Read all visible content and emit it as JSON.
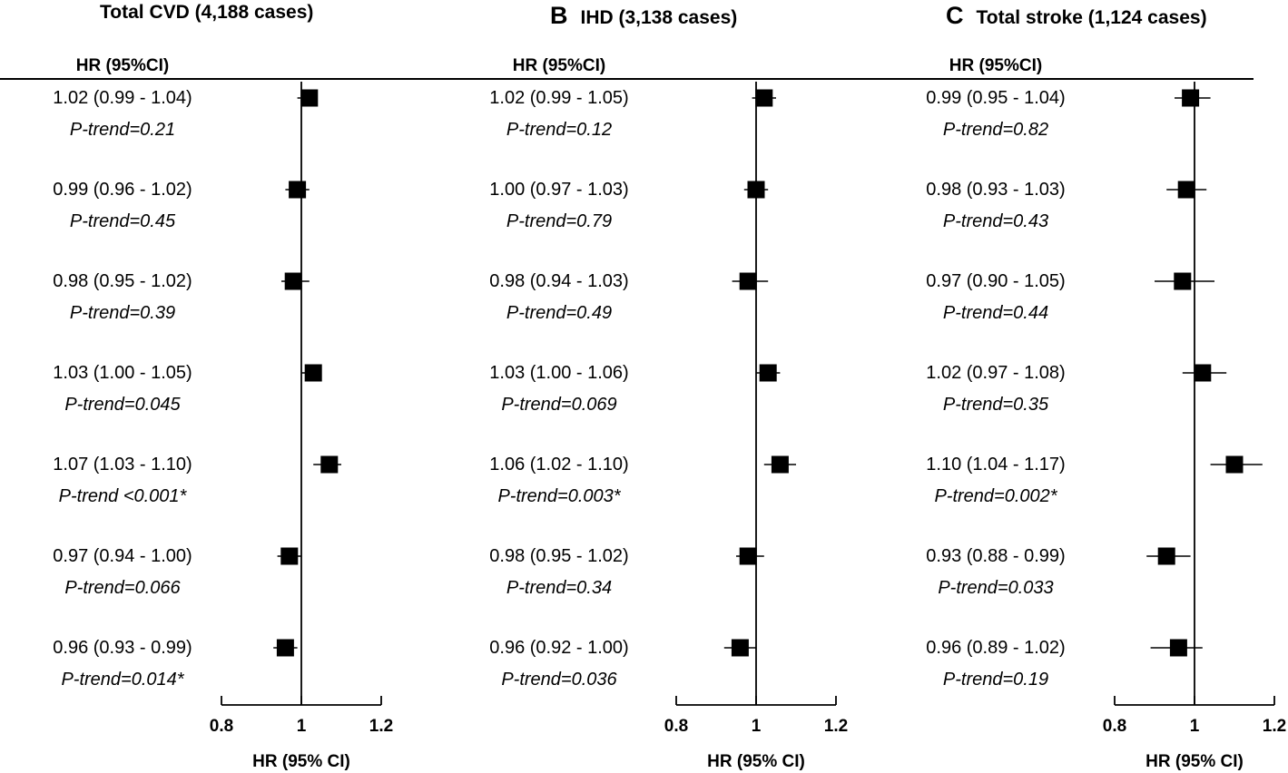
{
  "chart_data": [
    {
      "type": "forest",
      "panel_letter": "",
      "title": "Total CVD (4,188 cases)",
      "column_header": "HR (95%CI)",
      "xlabel": "HR (95% CI)",
      "xlim": [
        0.8,
        1.2
      ],
      "xticks": [
        "0.8",
        "1",
        "1.2"
      ],
      "reference_line": 1,
      "rows": [
        {
          "label": "1.02 (0.99 - 1.04)",
          "hr": 1.02,
          "lo": 0.99,
          "hi": 1.04,
          "p": "P-trend=0.21"
        },
        {
          "label": "0.99 (0.96 - 1.02)",
          "hr": 0.99,
          "lo": 0.96,
          "hi": 1.02,
          "p": "P-trend=0.45"
        },
        {
          "label": "0.98 (0.95 - 1.02)",
          "hr": 0.98,
          "lo": 0.95,
          "hi": 1.02,
          "p": "P-trend=0.39"
        },
        {
          "label": "1.03 (1.00 - 1.05)",
          "hr": 1.03,
          "lo": 1.0,
          "hi": 1.05,
          "p": "P-trend=0.045"
        },
        {
          "label": "1.07 (1.03 - 1.10)",
          "hr": 1.07,
          "lo": 1.03,
          "hi": 1.1,
          "p": "P-trend <0.001*"
        },
        {
          "label": "0.97 (0.94 - 1.00)",
          "hr": 0.97,
          "lo": 0.94,
          "hi": 1.0,
          "p": "P-trend=0.066"
        },
        {
          "label": "0.96 (0.93 - 0.99)",
          "hr": 0.96,
          "lo": 0.93,
          "hi": 0.99,
          "p": "P-trend=0.014*"
        }
      ]
    },
    {
      "type": "forest",
      "panel_letter": "B",
      "title": "IHD (3,138 cases)",
      "column_header": "HR (95%CI)",
      "xlabel": "HR (95% CI)",
      "xlim": [
        0.8,
        1.2
      ],
      "xticks": [
        "0.8",
        "1",
        "1.2"
      ],
      "reference_line": 1,
      "rows": [
        {
          "label": "1.02 (0.99 - 1.05)",
          "hr": 1.02,
          "lo": 0.99,
          "hi": 1.05,
          "p": "P-trend=0.12"
        },
        {
          "label": "1.00 (0.97 - 1.03)",
          "hr": 1.0,
          "lo": 0.97,
          "hi": 1.03,
          "p": "P-trend=0.79"
        },
        {
          "label": "0.98 (0.94 - 1.03)",
          "hr": 0.98,
          "lo": 0.94,
          "hi": 1.03,
          "p": "P-trend=0.49"
        },
        {
          "label": "1.03 (1.00 - 1.06)",
          "hr": 1.03,
          "lo": 1.0,
          "hi": 1.06,
          "p": "P-trend=0.069"
        },
        {
          "label": "1.06 (1.02 - 1.10)",
          "hr": 1.06,
          "lo": 1.02,
          "hi": 1.1,
          "p": "P-trend=0.003*"
        },
        {
          "label": "0.98 (0.95 - 1.02)",
          "hr": 0.98,
          "lo": 0.95,
          "hi": 1.02,
          "p": "P-trend=0.34"
        },
        {
          "label": "0.96 (0.92 - 1.00)",
          "hr": 0.96,
          "lo": 0.92,
          "hi": 1.0,
          "p": "P-trend=0.036"
        }
      ]
    },
    {
      "type": "forest",
      "panel_letter": "C",
      "title": "Total stroke (1,124 cases)",
      "column_header": "HR (95%CI)",
      "xlabel": "HR (95% CI)",
      "xlim": [
        0.8,
        1.2
      ],
      "xticks": [
        "0.8",
        "1",
        "1.2"
      ],
      "reference_line": 1,
      "rows": [
        {
          "label": "0.99 (0.95 - 1.04)",
          "hr": 0.99,
          "lo": 0.95,
          "hi": 1.04,
          "p": "P-trend=0.82"
        },
        {
          "label": "0.98 (0.93 - 1.03)",
          "hr": 0.98,
          "lo": 0.93,
          "hi": 1.03,
          "p": "P-trend=0.43"
        },
        {
          "label": "0.97 (0.90 - 1.05)",
          "hr": 0.97,
          "lo": 0.9,
          "hi": 1.05,
          "p": "P-trend=0.44"
        },
        {
          "label": "1.02 (0.97 - 1.08)",
          "hr": 1.02,
          "lo": 0.97,
          "hi": 1.08,
          "p": "P-trend=0.35"
        },
        {
          "label": "1.10 (1.04 - 1.17)",
          "hr": 1.1,
          "lo": 1.04,
          "hi": 1.17,
          "p": "P-trend=0.002*"
        },
        {
          "label": "0.93 (0.88 - 0.99)",
          "hr": 0.93,
          "lo": 0.88,
          "hi": 0.99,
          "p": "P-trend=0.033"
        },
        {
          "label": "0.96 (0.89 - 1.02)",
          "hr": 0.96,
          "lo": 0.89,
          "hi": 1.02,
          "p": "P-trend=0.19"
        }
      ]
    }
  ]
}
